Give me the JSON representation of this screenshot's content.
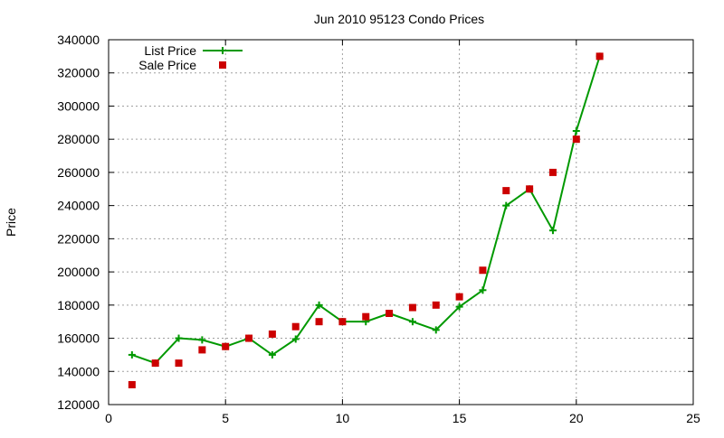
{
  "chart_data": {
    "type": "line",
    "title": "Jun 2010 95123 Condo Prices",
    "xlabel": "",
    "ylabel": "Price",
    "xlim": [
      0,
      25
    ],
    "ylim": [
      120000,
      340000
    ],
    "xticks": [
      0,
      5,
      10,
      15,
      20,
      25
    ],
    "yticks": [
      120000,
      140000,
      160000,
      180000,
      200000,
      220000,
      240000,
      260000,
      280000,
      300000,
      320000,
      340000
    ],
    "grid": true,
    "legend_position": "top-left",
    "series": [
      {
        "name": "List Price",
        "style": "line-with-plus-markers",
        "color": "#009900",
        "x": [
          1,
          2,
          3,
          4,
          5,
          6,
          7,
          8,
          9,
          10,
          11,
          12,
          13,
          14,
          15,
          16,
          17,
          18,
          19,
          20,
          21
        ],
        "y": [
          150000,
          145000,
          160000,
          159000,
          155000,
          160000,
          150000,
          159500,
          180000,
          170000,
          170000,
          175000,
          170000,
          165000,
          179000,
          189000,
          240000,
          250000,
          225000,
          285000,
          330000
        ]
      },
      {
        "name": "Sale Price",
        "style": "square-markers",
        "color": "#cc0000",
        "x": [
          1,
          2,
          3,
          4,
          5,
          6,
          7,
          8,
          9,
          10,
          11,
          12,
          13,
          14,
          15,
          16,
          17,
          18,
          19,
          20,
          21
        ],
        "y": [
          132000,
          145000,
          145000,
          153000,
          155000,
          160000,
          162500,
          167000,
          170000,
          170000,
          173000,
          175000,
          178500,
          180000,
          185000,
          201000,
          249000,
          250000,
          260000,
          280000,
          330000
        ]
      }
    ]
  }
}
